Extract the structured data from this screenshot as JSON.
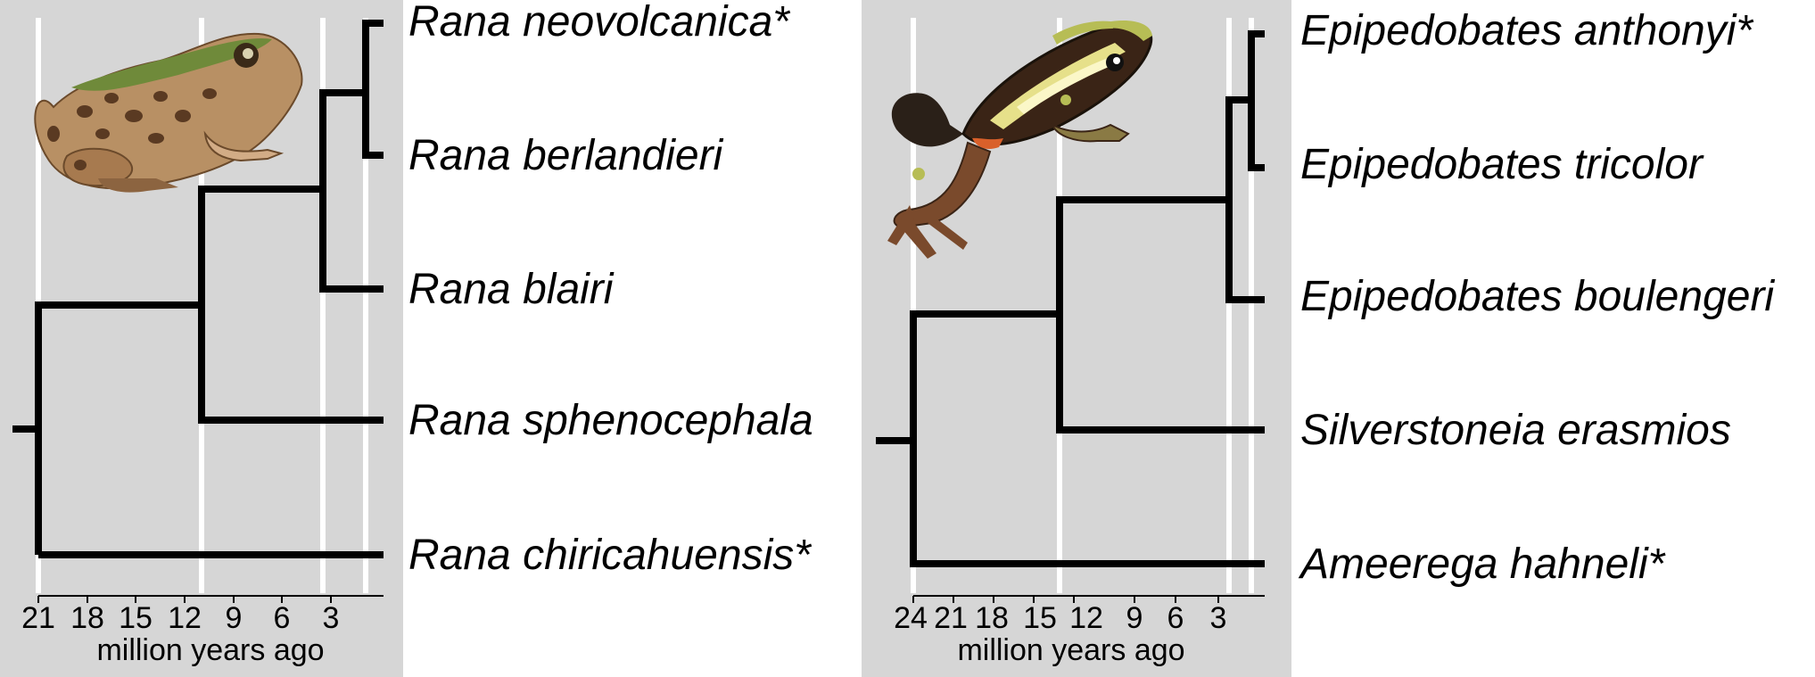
{
  "colors": {
    "panel_background": "#d6d6d6",
    "gridline": "#ffffff",
    "branch": "#000000"
  },
  "panels": [
    {
      "clade": "Rana",
      "taxa": [
        "Rana neovolcanica*",
        "Rana berlandieri",
        "Rana blairi",
        "Rana sphenocephala",
        "Rana chiricahuensis*"
      ],
      "axis": {
        "ticks": [
          "21",
          "18",
          "15",
          "12",
          "9",
          "6",
          "3"
        ],
        "label": "million years ago"
      },
      "illustration": "leopard-frog-icon"
    },
    {
      "clade": "Epipedobates",
      "taxa": [
        "Epipedobates anthonyi*",
        "Epipedobates tricolor",
        "Epipedobates boulengeri",
        "Silverstoneia erasmios",
        "Ameerega hahneli*"
      ],
      "axis": {
        "ticks": [
          "24",
          "21",
          "18",
          "15",
          "12",
          "9",
          "6",
          "3"
        ],
        "label": "million years ago"
      },
      "illustration": "poison-dart-frog-icon"
    }
  ]
}
